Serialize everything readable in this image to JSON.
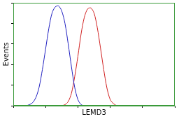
{
  "chart_data": {
    "type": "line",
    "x_label": "LEMD3",
    "y_label": "Events",
    "xlim": [
      0,
      5
    ],
    "xticks": [
      0,
      1,
      2,
      3,
      4,
      5
    ],
    "ylim": [
      0,
      100
    ],
    "yticks": [
      0,
      20,
      40,
      60,
      80,
      100
    ],
    "grid": false,
    "tick_labels": false,
    "series": [
      {
        "color": "#2020c0",
        "x": [
          0.4,
          0.5,
          0.6,
          0.7,
          0.8,
          0.9,
          1.0,
          1.1,
          1.2,
          1.3,
          1.4,
          1.5,
          1.6,
          1.7,
          1.8,
          1.9,
          2.0,
          2.1,
          2.2
        ],
        "values": [
          0,
          1,
          3,
          8,
          18,
          35,
          55,
          75,
          90,
          96,
          97,
          92,
          80,
          60,
          38,
          18,
          6,
          1,
          0
        ]
      },
      {
        "color": "#d02020",
        "x": [
          1.5,
          1.6,
          1.7,
          1.8,
          1.9,
          2.0,
          2.1,
          2.2,
          2.3,
          2.4,
          2.5,
          2.6,
          2.7,
          2.8,
          2.9,
          3.0,
          3.1,
          3.2
        ],
        "values": [
          0,
          1,
          4,
          12,
          28,
          48,
          70,
          86,
          94,
          95,
          90,
          76,
          56,
          35,
          17,
          6,
          2,
          0
        ]
      }
    ]
  }
}
